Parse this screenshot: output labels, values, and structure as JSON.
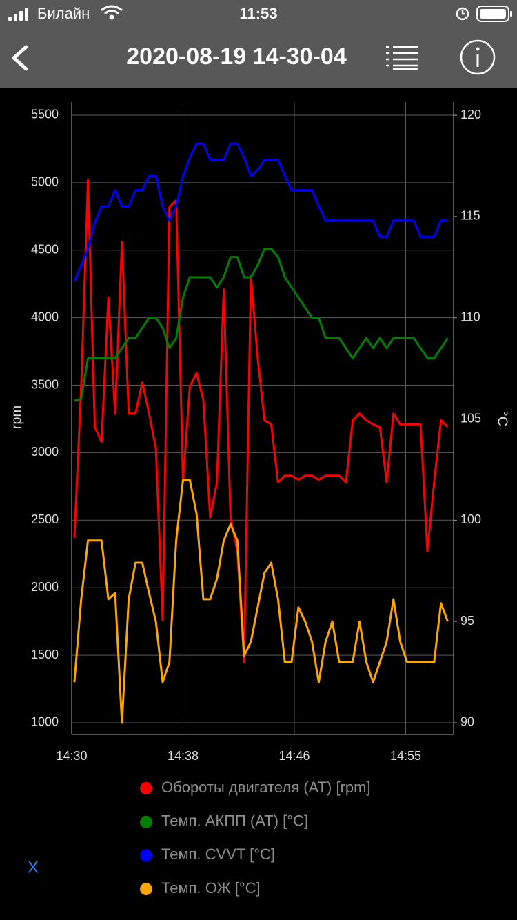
{
  "status_bar": {
    "carrier": "Билайн",
    "time": "11:53"
  },
  "header": {
    "title": "2020-08-19 14-30-04"
  },
  "close_button": "X",
  "chart_data": {
    "type": "line",
    "y_label": "rpm",
    "y2_label": "°C",
    "grid": true,
    "xlim": [
      870,
      898.13
    ],
    "xticks": [
      {
        "value": 870,
        "label": "14:30"
      },
      {
        "value": 878.2,
        "label": "14:38"
      },
      {
        "value": 886.4,
        "label": "14:46"
      },
      {
        "value": 894.6,
        "label": "14:55"
      }
    ],
    "ylim": [
      913,
      5597
    ],
    "yticks": [
      1000,
      1500,
      2000,
      2500,
      3000,
      3500,
      4000,
      4500,
      5000,
      5500
    ],
    "y2lim": [
      89.42,
      120.65
    ],
    "y2ticks": [
      90,
      95,
      100,
      105,
      110,
      115,
      120
    ],
    "x": [
      870.2,
      870.7,
      871.2,
      871.7,
      872.2,
      872.7,
      873.2,
      873.7,
      874.2,
      874.7,
      875.2,
      875.7,
      876.2,
      876.7,
      877.2,
      877.7,
      878.2,
      878.7,
      879.2,
      879.7,
      880.2,
      880.7,
      881.2,
      881.7,
      882.2,
      882.7,
      883.2,
      883.7,
      884.2,
      884.7,
      885.2,
      885.7,
      886.2,
      886.7,
      887.2,
      887.7,
      888.2,
      888.7,
      889.2,
      889.7,
      890.2,
      890.7,
      891.2,
      891.7,
      892.2,
      892.7,
      893.2,
      893.7,
      894.2,
      894.7,
      895.2,
      895.7,
      896.2,
      896.7,
      897.2,
      897.7
    ],
    "series": [
      {
        "name": "Обороты двигателя (AT) [rpm]",
        "color": "#ff0000",
        "axis": "y",
        "values": [
          2370,
          3490,
          5020,
          3190,
          3080,
          4150,
          3290,
          4560,
          3290,
          3290,
          3520,
          3290,
          3030,
          1760,
          4820,
          4870,
          2780,
          3490,
          3590,
          3390,
          2520,
          2780,
          4210,
          2520,
          2270,
          1450,
          4310,
          3700,
          3240,
          3210,
          2780,
          2830,
          2830,
          2800,
          2830,
          2830,
          2800,
          2830,
          2830,
          2830,
          2780,
          3240,
          3290,
          3240,
          3210,
          3190,
          2780,
          3290,
          3210,
          3210,
          3210,
          3210,
          2270,
          2780,
          3240,
          3190
        ]
      },
      {
        "name": "Темп. АКПП (AT) [°C]",
        "color": "#008000",
        "axis": "y2",
        "values": [
          105.9,
          106.0,
          108.0,
          108.0,
          108.0,
          108.0,
          108.0,
          108.5,
          109.0,
          109.0,
          109.5,
          110.0,
          110.0,
          109.5,
          108.5,
          109.0,
          111.0,
          112.0,
          112.0,
          112.0,
          112.0,
          111.5,
          112.0,
          113.0,
          113.0,
          112.0,
          112.0,
          112.6,
          113.4,
          113.4,
          113.0,
          112.0,
          111.5,
          111.0,
          110.5,
          110.0,
          110.0,
          109.0,
          109.0,
          109.0,
          108.5,
          108.0,
          108.5,
          109.0,
          108.5,
          109.0,
          108.5,
          109.0,
          109.0,
          109.0,
          109.0,
          108.5,
          108.0,
          108.0,
          108.5,
          109.0
        ]
      },
      {
        "name": "Темп. CVVT [°C]",
        "color": "#0000ff",
        "axis": "y2",
        "values": [
          111.8,
          112.6,
          113.4,
          114.7,
          115.5,
          115.5,
          116.3,
          115.5,
          115.5,
          116.3,
          116.3,
          117.0,
          117.0,
          115.5,
          114.8,
          115.5,
          117.0,
          117.9,
          118.6,
          118.6,
          117.8,
          117.8,
          117.8,
          118.6,
          118.6,
          117.9,
          117.0,
          117.3,
          117.8,
          117.8,
          117.8,
          117.0,
          116.3,
          116.3,
          116.3,
          116.3,
          115.5,
          114.8,
          114.8,
          114.8,
          114.8,
          114.8,
          114.8,
          114.8,
          114.8,
          114.0,
          114.0,
          114.8,
          114.8,
          114.8,
          114.8,
          114.0,
          114.0,
          114.0,
          114.8,
          114.8
        ]
      },
      {
        "name": "Темп. ОЖ [°C]",
        "color": "#ffa500",
        "axis": "y2",
        "values": [
          92.0,
          96.1,
          99.0,
          99.0,
          99.0,
          96.1,
          96.4,
          90.0,
          96.1,
          97.9,
          97.9,
          96.4,
          95.0,
          92.0,
          93.0,
          99.0,
          102.0,
          102.0,
          100.3,
          96.1,
          96.1,
          97.1,
          99.0,
          99.8,
          99.0,
          93.3,
          94.0,
          95.7,
          97.4,
          97.9,
          96.1,
          93.0,
          93.0,
          95.7,
          95.0,
          94.0,
          92.0,
          94.0,
          95.0,
          93.0,
          93.0,
          93.0,
          95.0,
          93.0,
          92.0,
          93.0,
          94.0,
          96.1,
          94.0,
          93.0,
          93.0,
          93.0,
          93.0,
          93.0,
          95.9,
          95.0
        ]
      }
    ]
  }
}
